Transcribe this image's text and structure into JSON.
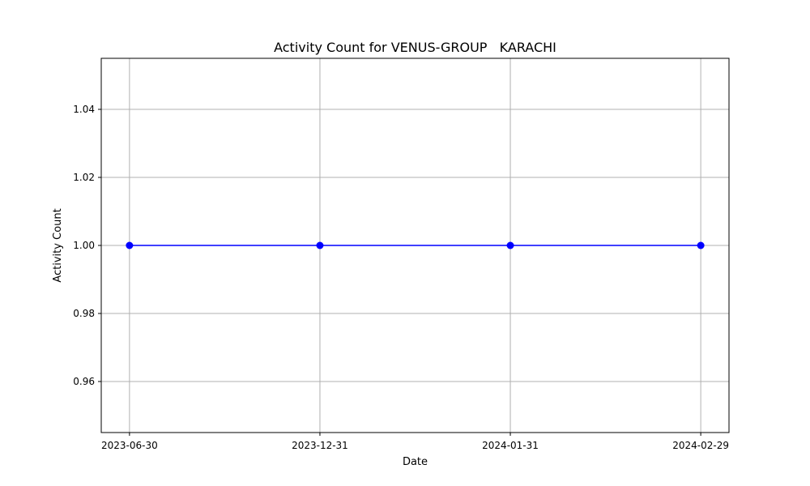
{
  "chart_data": {
    "type": "line",
    "title": "Activity Count for VENUS-GROUP   KARACHI",
    "xlabel": "Date",
    "ylabel": "Activity Count",
    "categories": [
      "2023-06-30",
      "2023-12-31",
      "2024-01-31",
      "2024-02-29"
    ],
    "series": [
      {
        "values": [
          1,
          1,
          1,
          1
        ],
        "color": "#0000ff",
        "marker": "circle"
      }
    ],
    "ylim": [
      0.945,
      1.055
    ],
    "yticks": [
      0.96,
      0.98,
      1.0,
      1.02,
      1.04
    ],
    "ytick_labels": [
      "0.96",
      "0.98",
      "1.00",
      "1.02",
      "1.04"
    ],
    "grid": true,
    "grid_color": "#b0b0b0",
    "legend": "none"
  }
}
